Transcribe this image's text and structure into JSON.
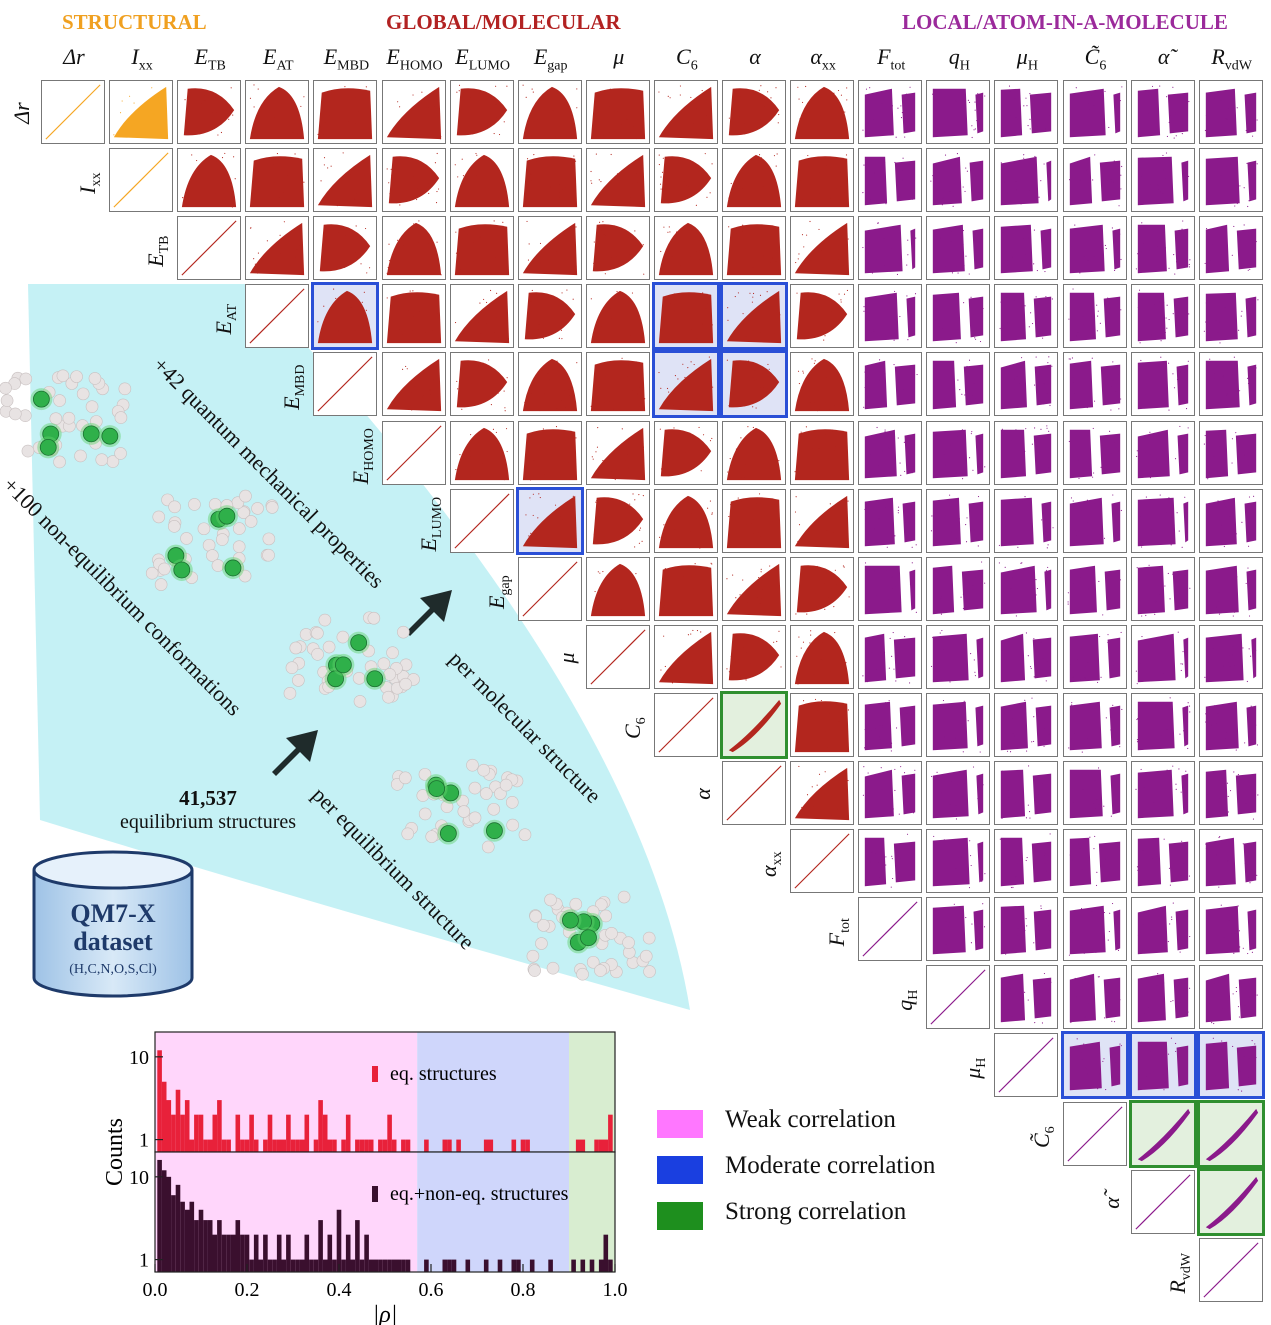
{
  "group_titles": {
    "structural": "STRUCTURAL",
    "global": "GLOBAL/MOLECULAR",
    "local": "LOCAL/ATOM-IN-A-MOLECULE"
  },
  "properties": [
    "Δr",
    "Ixx",
    "ETB",
    "EAT",
    "EMBD",
    "EHOMO",
    "ELUMO",
    "Egap",
    "μ",
    "C6",
    "α",
    "αxx",
    "Ftot",
    "qH",
    "μH",
    "C̃6",
    "α̃",
    "RvdW"
  ],
  "property_labels": [
    {
      "base": "Δr",
      "sub": ""
    },
    {
      "base": "I",
      "sub": "xx"
    },
    {
      "base": "E",
      "sub": "TB"
    },
    {
      "base": "E",
      "sub": "AT"
    },
    {
      "base": "E",
      "sub": "MBD"
    },
    {
      "base": "E",
      "sub": "HOMO"
    },
    {
      "base": "E",
      "sub": "LUMO"
    },
    {
      "base": "E",
      "sub": "gap"
    },
    {
      "base": "μ",
      "sub": ""
    },
    {
      "base": "C",
      "sub": "6"
    },
    {
      "base": "α",
      "sub": ""
    },
    {
      "base": "α",
      "sub": "xx"
    },
    {
      "base": "F",
      "sub": "tot"
    },
    {
      "base": "q",
      "sub": "H"
    },
    {
      "base": "μ",
      "sub": "H"
    },
    {
      "base": "C̃",
      "sub": "6"
    },
    {
      "base": "α̃",
      "sub": ""
    },
    {
      "base": "R",
      "sub": "vdW"
    }
  ],
  "colors": {
    "structural": "#f5a623",
    "global": "#b3261e",
    "local": "#8b1a8b",
    "weak": "#ff77ff",
    "moderate": "#1a3fe0",
    "strong": "#1e8f1e",
    "fan": "#bff0f4"
  },
  "highlights": {
    "blue": [
      [
        3,
        4
      ],
      [
        3,
        9
      ],
      [
        3,
        10
      ],
      [
        4,
        9
      ],
      [
        4,
        10
      ],
      [
        6,
        7
      ],
      [
        14,
        15
      ],
      [
        14,
        16
      ],
      [
        14,
        17
      ]
    ],
    "green": [
      [
        9,
        10
      ],
      [
        15,
        16
      ],
      [
        15,
        17
      ],
      [
        16,
        17
      ]
    ]
  },
  "diagram_text": {
    "quantum": "+42 quantum mechanical properties",
    "per_molecular": "per molecular structure",
    "non_eq": "+100 non-equilibrium conformations",
    "per_eq": "per equilibrium structure",
    "eq_count": "41,537",
    "eq_label": "equilibrium structures"
  },
  "dataset": {
    "name_line1": "QM7-X",
    "name_line2": "dataset",
    "elements": "(H,C,N,O,S,Cl)"
  },
  "legend": [
    {
      "label": "Weak correlation",
      "color": "#ff77ff"
    },
    {
      "label": "Moderate correlation",
      "color": "#1a3fe0"
    },
    {
      "label": "Strong correlation",
      "color": "#1e8f1e"
    }
  ],
  "chart_data": {
    "type": "bar",
    "xlabel": "|ρ|",
    "ylabel": "Counts",
    "xlim": [
      0.0,
      1.0
    ],
    "xticks": [
      "0.0",
      "0.2",
      "0.4",
      "0.6",
      "0.8",
      "1.0"
    ],
    "yscale": "log",
    "yticks": [
      "1",
      "10"
    ],
    "regions": [
      {
        "name": "Weak correlation",
        "from": 0.0,
        "to": 0.57,
        "color": "#ffd6fb"
      },
      {
        "name": "Moderate correlation",
        "from": 0.57,
        "to": 0.9,
        "color": "#cfd6fb"
      },
      {
        "name": "Strong correlation",
        "from": 0.9,
        "to": 1.0,
        "color": "#d8edd0"
      }
    ],
    "series": [
      {
        "name": "eq. structures",
        "color": "#e8213a",
        "x": [
          0.01,
          0.02,
          0.03,
          0.04,
          0.05,
          0.06,
          0.07,
          0.08,
          0.09,
          0.1,
          0.11,
          0.12,
          0.13,
          0.14,
          0.15,
          0.16,
          0.18,
          0.19,
          0.2,
          0.21,
          0.22,
          0.24,
          0.25,
          0.26,
          0.27,
          0.28,
          0.29,
          0.3,
          0.31,
          0.32,
          0.33,
          0.35,
          0.36,
          0.37,
          0.38,
          0.39,
          0.41,
          0.42,
          0.44,
          0.45,
          0.46,
          0.47,
          0.49,
          0.5,
          0.51,
          0.52,
          0.54,
          0.55,
          0.59,
          0.63,
          0.64,
          0.66,
          0.72,
          0.73,
          0.78,
          0.8,
          0.81,
          0.92,
          0.93,
          0.96,
          0.97,
          0.98,
          0.99
        ],
        "values": [
          12,
          5,
          3,
          2,
          4,
          2,
          3,
          1,
          2,
          2,
          1,
          1,
          2,
          3,
          1,
          1,
          2,
          1,
          1,
          2,
          1,
          1,
          2,
          1,
          1,
          1,
          2,
          1,
          1,
          1,
          2,
          1,
          3,
          2,
          1,
          1,
          1,
          2,
          1,
          1,
          1,
          1,
          1,
          1,
          2,
          1,
          1,
          1,
          1,
          1,
          1,
          1,
          1,
          1,
          1,
          1,
          1,
          1,
          1,
          1,
          1,
          1,
          2
        ]
      },
      {
        "name": "eq.+non-eq. structures",
        "color": "#3a0f2e",
        "x": [
          0.01,
          0.02,
          0.03,
          0.04,
          0.05,
          0.06,
          0.07,
          0.08,
          0.09,
          0.1,
          0.11,
          0.12,
          0.13,
          0.14,
          0.15,
          0.16,
          0.17,
          0.18,
          0.19,
          0.2,
          0.21,
          0.22,
          0.23,
          0.24,
          0.25,
          0.26,
          0.27,
          0.28,
          0.29,
          0.3,
          0.31,
          0.32,
          0.33,
          0.34,
          0.35,
          0.36,
          0.37,
          0.38,
          0.39,
          0.4,
          0.41,
          0.42,
          0.43,
          0.44,
          0.45,
          0.46,
          0.47,
          0.48,
          0.49,
          0.5,
          0.51,
          0.52,
          0.53,
          0.54,
          0.55,
          0.59,
          0.63,
          0.64,
          0.65,
          0.68,
          0.72,
          0.75,
          0.78,
          0.79,
          0.82,
          0.86,
          0.91,
          0.93,
          0.95,
          0.97,
          0.98,
          0.99
        ],
        "values": [
          16,
          12,
          10,
          6,
          8,
          5,
          4,
          5,
          3,
          4,
          3,
          3,
          2,
          3,
          2,
          2,
          2,
          3,
          2,
          2,
          1,
          2,
          1,
          2,
          1,
          1,
          2,
          1,
          2,
          1,
          1,
          1,
          2,
          1,
          1,
          3,
          1,
          2,
          1,
          4,
          1,
          2,
          1,
          3,
          1,
          2,
          1,
          1,
          1,
          1,
          1,
          1,
          1,
          1,
          1,
          1,
          1,
          1,
          1,
          1,
          1,
          1,
          1,
          1,
          1,
          1,
          1,
          1,
          1,
          1,
          2,
          1
        ]
      }
    ]
  }
}
